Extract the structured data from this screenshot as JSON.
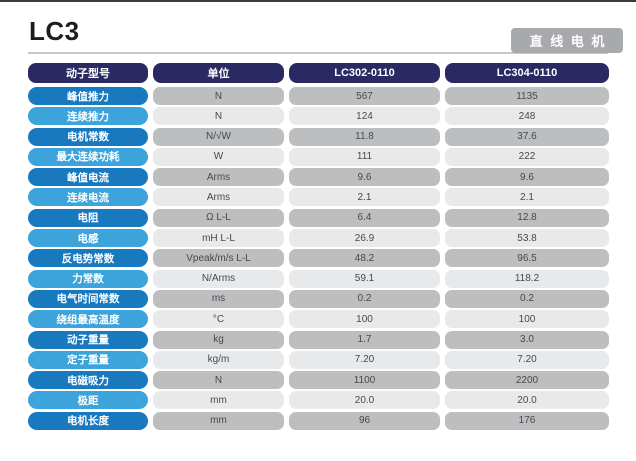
{
  "page": {
    "title": "LC3",
    "badge": "直 线 电 机"
  },
  "table": {
    "headers": [
      "动子型号",
      "单位",
      "LC302-0110",
      "LC304-0110"
    ],
    "rows": [
      {
        "label": "峰值推力",
        "unit": "N",
        "values": [
          "567",
          "1135"
        ]
      },
      {
        "label": "连续推力",
        "unit": "N",
        "values": [
          "124",
          "248"
        ]
      },
      {
        "label": "电机常数",
        "unit": "N/√W",
        "values": [
          "11.8",
          "37.6"
        ]
      },
      {
        "label": "最大连续功耗",
        "unit": "W",
        "values": [
          "111",
          "222"
        ]
      },
      {
        "label": "峰值电流",
        "unit": "Arms",
        "values": [
          "9.6",
          "9.6"
        ]
      },
      {
        "label": "连续电流",
        "unit": "Arms",
        "values": [
          "2.1",
          "2.1"
        ]
      },
      {
        "label": "电阻",
        "unit": "Ω L-L",
        "values": [
          "6.4",
          "12.8"
        ]
      },
      {
        "label": "电感",
        "unit": "mH L-L",
        "values": [
          "26.9",
          "53.8"
        ]
      },
      {
        "label": "反电势常数",
        "unit": "Vpeak/m/s L-L",
        "values": [
          "48.2",
          "96.5"
        ]
      },
      {
        "label": "力常数",
        "unit": "N/Arms",
        "values": [
          "59.1",
          "118.2"
        ]
      },
      {
        "label": "电气时间常数",
        "unit": "ms",
        "values": [
          "0.2",
          "0.2"
        ]
      },
      {
        "label": "绕组最高温度",
        "unit": "°C",
        "values": [
          "100",
          "100"
        ]
      },
      {
        "label": "动子重量",
        "unit": "kg",
        "values": [
          "1.7",
          "3.0"
        ]
      },
      {
        "label": "定子重量",
        "unit": "kg/m",
        "values": [
          "7.20",
          "7.20"
        ]
      },
      {
        "label": "电磁吸力",
        "unit": "N",
        "values": [
          "1100",
          "2200"
        ]
      },
      {
        "label": "极距",
        "unit": "mm",
        "values": [
          "20.0",
          "20.0"
        ]
      },
      {
        "label": "电机长度",
        "unit": "mm",
        "values": [
          "96",
          "176"
        ]
      }
    ]
  },
  "colors": {
    "header_navy": "#2a2961",
    "pill_dark_blue": "#1879bf",
    "pill_light_blue": "#3ca4db",
    "cell_dark_gray": "#bcbec0",
    "cell_light_gray": "#e8e9ea",
    "badge_gray": "#a7a9ac",
    "value_text": "#48494b"
  }
}
